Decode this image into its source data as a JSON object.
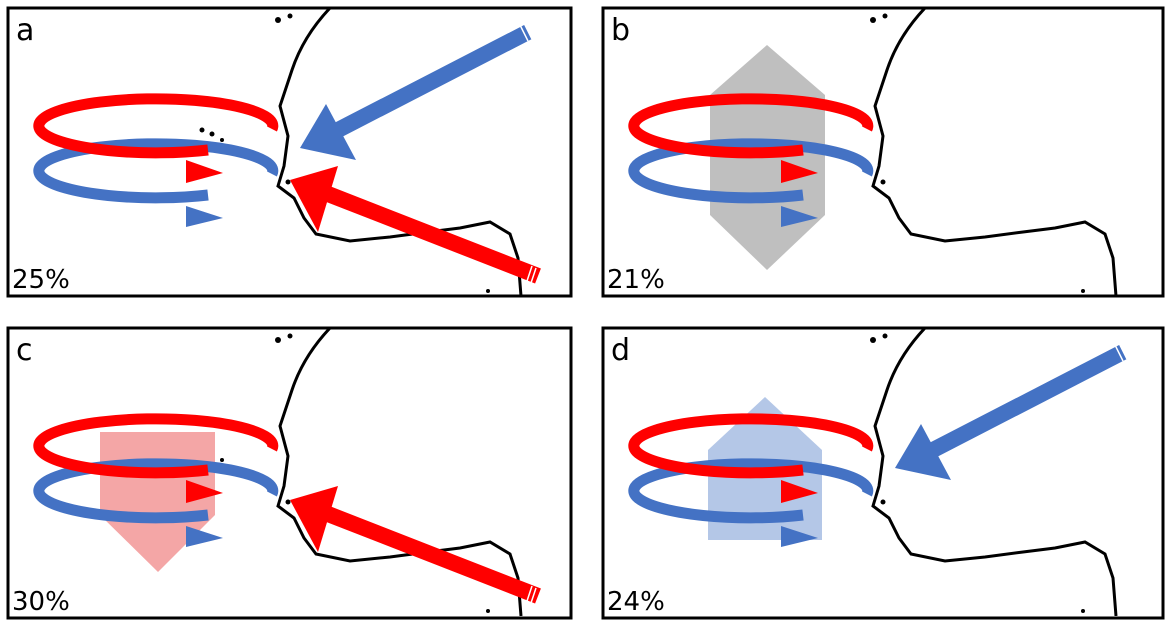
{
  "panels": [
    {
      "label": "a",
      "percent": "25%"
    },
    {
      "label": "b",
      "percent": "21%"
    },
    {
      "label": "c",
      "percent": "30%"
    },
    {
      "label": "d",
      "percent": "24%"
    }
  ]
}
